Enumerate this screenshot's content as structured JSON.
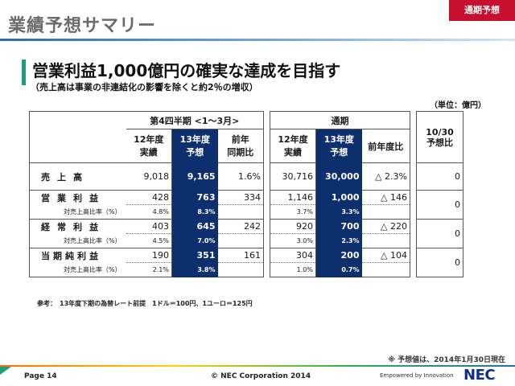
{
  "header": {
    "title": "業績予想サマリー",
    "badge": "通期予想"
  },
  "headline": "営業利益1,000億円の確実な達成を目指す",
  "subhead": "（売上高は事業の非連結化の影響を除くと約2％の増収）",
  "unit": "（単位：億円）",
  "table": {
    "q4_header": "第4四半期 <1～3月>",
    "fy_header": "通期",
    "q4_cols": [
      "12年度\n実績",
      "13年度\n予想",
      "前年\n同期比"
    ],
    "fy_cols": [
      "12年度\n実績",
      "13年度\n予想",
      "前年度比"
    ],
    "extra_col": "10/30\n予想比",
    "rows": [
      {
        "label": "売上高",
        "q4": [
          "9,018",
          "9,165",
          "1.6%"
        ],
        "fy": [
          "30,716",
          "30,000",
          "△ 2.3%"
        ],
        "extra": "0",
        "ratio_label": "",
        "q4_ratio": [
          "",
          ""
        ],
        "fy_ratio": [
          "",
          ""
        ]
      },
      {
        "label": "営業利益",
        "q4": [
          "428",
          "763",
          "334"
        ],
        "fy": [
          "1,146",
          "1,000",
          "△ 146"
        ],
        "extra": "0",
        "ratio_label": "対売上高比率（%）",
        "q4_ratio": [
          "4.8%",
          "8.3%"
        ],
        "fy_ratio": [
          "3.7%",
          "3.3%"
        ]
      },
      {
        "label": "経常利益",
        "q4": [
          "403",
          "645",
          "242"
        ],
        "fy": [
          "920",
          "700",
          "△ 220"
        ],
        "extra": "0",
        "ratio_label": "対売上高比率（%）",
        "q4_ratio": [
          "4.5%",
          "7.0%"
        ],
        "fy_ratio": [
          "3.0%",
          "2.3%"
        ]
      },
      {
        "label": "当期純利益",
        "q4": [
          "190",
          "351",
          "161"
        ],
        "fy": [
          "304",
          "200",
          "△ 104"
        ],
        "extra": "0",
        "ratio_label": "対売上高比率（%）",
        "q4_ratio": [
          "2.1%",
          "3.8%"
        ],
        "fy_ratio": [
          "1.0%",
          "0.7%"
        ]
      }
    ]
  },
  "note": "参考：　13年度下期の為替レート前提　1ドル＝100円、1ユーロ＝125円",
  "as_of": "※ 予想値は、2014年1月30日現在",
  "footer": {
    "page": "Page 14",
    "copyright": "© NEC Corporation 2014",
    "tagline": "Empowered by Innovation",
    "logo": "NEC"
  },
  "colors": {
    "accent_navy": "#0e2f6e",
    "badge_red": "#c8102e",
    "bar_green": "#1aa07a"
  }
}
